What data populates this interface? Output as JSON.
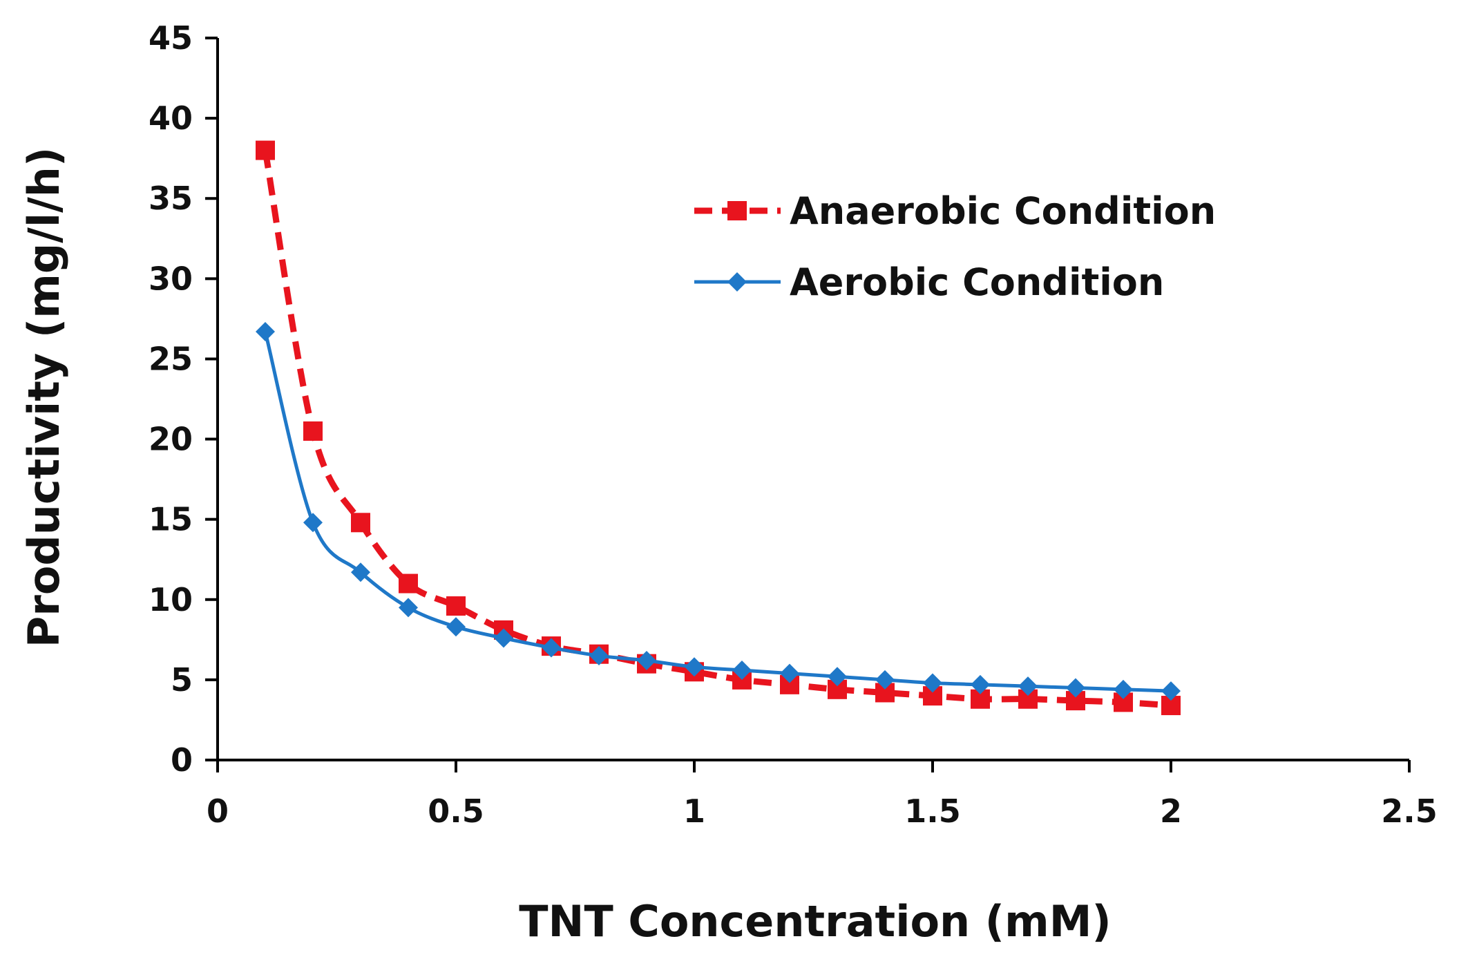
{
  "chart_data": {
    "type": "line",
    "title": "",
    "xlabel": "TNT Concentration (mM)",
    "ylabel": "Productivity (mg/l/h)",
    "xlim": [
      0,
      2.5
    ],
    "ylim": [
      0,
      45
    ],
    "xticks": [
      0,
      0.5,
      1,
      1.5,
      2,
      2.5
    ],
    "xtick_labels": [
      "0",
      "0.5",
      "1",
      "1.5",
      "2",
      "2.5"
    ],
    "yticks": [
      0,
      5,
      10,
      15,
      20,
      25,
      30,
      35,
      40,
      45
    ],
    "ytick_labels": [
      "0",
      "5",
      "10",
      "15",
      "20",
      "25",
      "30",
      "35",
      "40",
      "45"
    ],
    "grid": false,
    "legend_position": "top-right",
    "x": [
      0.1,
      0.2,
      0.3,
      0.4,
      0.5,
      0.6,
      0.7,
      0.8,
      0.9,
      1.0,
      1.1,
      1.2,
      1.3,
      1.4,
      1.5,
      1.6,
      1.7,
      1.8,
      1.9,
      2.0
    ],
    "series": [
      {
        "name": "Anaerobic Condition",
        "color": "#e8141e",
        "line_style": "dashed",
        "marker": "square",
        "values": [
          38.0,
          20.5,
          14.8,
          11.0,
          9.6,
          8.1,
          7.1,
          6.6,
          6.0,
          5.5,
          5.0,
          4.7,
          4.4,
          4.2,
          4.0,
          3.8,
          3.8,
          3.7,
          3.6,
          3.4
        ]
      },
      {
        "name": "Aerobic Condition",
        "color": "#1f78c8",
        "line_style": "solid",
        "marker": "diamond",
        "values": [
          26.7,
          14.8,
          11.7,
          9.5,
          8.3,
          7.6,
          7.0,
          6.5,
          6.2,
          5.8,
          5.6,
          5.4,
          5.2,
          5.0,
          4.8,
          4.7,
          4.6,
          4.5,
          4.4,
          4.3
        ]
      }
    ]
  }
}
